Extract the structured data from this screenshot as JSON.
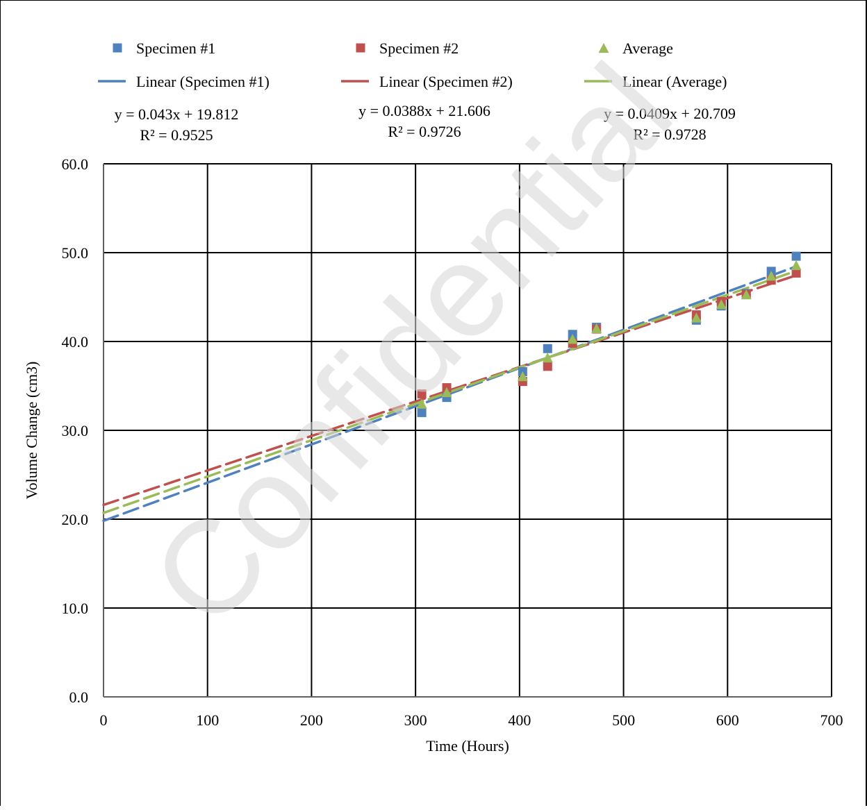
{
  "chart_data": {
    "type": "scatter",
    "xlabel": "Time (Hours)",
    "ylabel": "Volume Change (cm3)",
    "xlim": [
      0,
      700
    ],
    "ylim": [
      0,
      60
    ],
    "x_ticks": [
      "0",
      "100",
      "200",
      "300",
      "400",
      "500",
      "600",
      "700"
    ],
    "y_ticks": [
      "0.0",
      "10.0",
      "20.0",
      "30.0",
      "40.0",
      "50.0",
      "60.0"
    ],
    "grid": true,
    "legend_position": "top",
    "watermark": "Confidential",
    "series": [
      {
        "name": "Specimen #1",
        "marker": "square",
        "color": "#4F81BD",
        "x": [
          306,
          330,
          403,
          427,
          451,
          474,
          570,
          594,
          618,
          642,
          666
        ],
        "y": [
          32.0,
          33.7,
          36.6,
          39.2,
          40.8,
          41.6,
          42.4,
          44.0,
          45.4,
          47.9,
          49.6
        ]
      },
      {
        "name": "Specimen #2",
        "marker": "square",
        "color": "#C0504D",
        "x": [
          306,
          330,
          403,
          427,
          451,
          474,
          570,
          594,
          618,
          642,
          666
        ],
        "y": [
          34.1,
          34.8,
          35.5,
          37.2,
          39.8,
          41.4,
          43.0,
          44.5,
          45.3,
          46.9,
          47.7
        ]
      },
      {
        "name": "Average",
        "marker": "triangle",
        "color": "#9BBB59",
        "x": [
          306,
          330,
          403,
          427,
          451,
          474,
          570,
          594,
          618,
          642,
          666
        ],
        "y": [
          33.0,
          34.3,
          36.1,
          38.2,
          40.3,
          41.5,
          42.7,
          44.2,
          45.3,
          47.4,
          48.6
        ]
      }
    ],
    "trendlines": [
      {
        "name": "Linear (Specimen #1)",
        "color": "#4F81BD",
        "slope": 0.043,
        "intercept": 19.812,
        "x_range": [
          0,
          666
        ],
        "equation": "y = 0.043x + 19.812",
        "r2": "R² = 0.9525"
      },
      {
        "name": "Linear (Specimen #2)",
        "color": "#C0504D",
        "slope": 0.0388,
        "intercept": 21.606,
        "x_range": [
          0,
          666
        ],
        "equation": "y = 0.0388x + 21.606",
        "r2": "R² = 0.9726"
      },
      {
        "name": "Linear (Average)",
        "color": "#9BBB59",
        "slope": 0.0409,
        "intercept": 20.709,
        "x_range": [
          0,
          666
        ],
        "equation": "y = 0.0409x + 20.709",
        "r2": "R² = 0.9728"
      }
    ]
  }
}
